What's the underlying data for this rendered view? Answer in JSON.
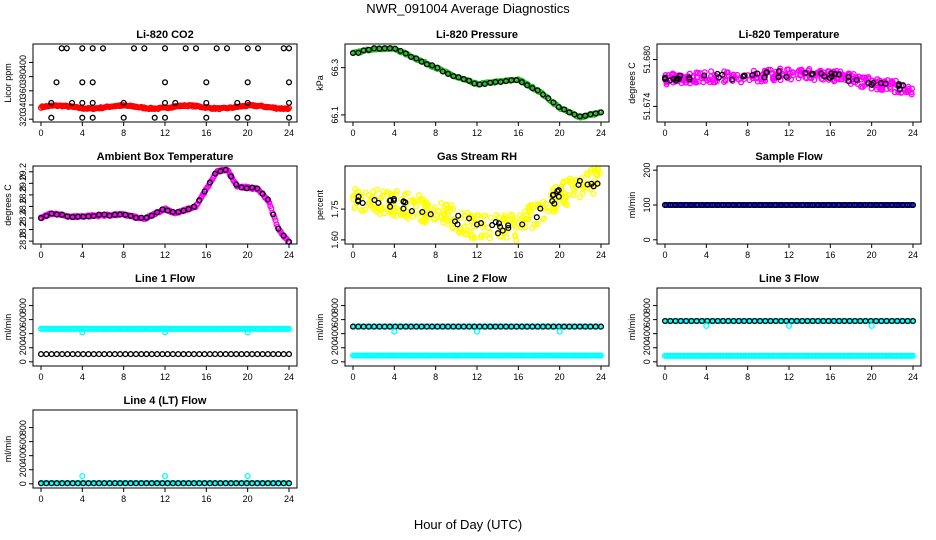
{
  "title": "NWR_091004  Average Diagnostics",
  "xlabel": "Hour of Day (UTC)",
  "colors": {
    "black": "#000000",
    "red": "#ff0000",
    "green": "#22bb22",
    "magenta": "#ff00ff",
    "yellow": "#ffff00",
    "blue": "#0000cc",
    "cyan": "#00ffff"
  },
  "chart_data": [
    {
      "type": "scatter",
      "title": "Li-820 CO2",
      "ylabel": "Licor ppm",
      "xlim": [
        0,
        24
      ],
      "ylim": [
        316,
        426
      ],
      "xticks": [
        "0",
        "4",
        "8",
        "12",
        "16",
        "20",
        "24"
      ],
      "yticks": [
        "320",
        "340",
        "360",
        "380",
        "400"
      ],
      "yticklabel_vals": [
        320,
        340,
        360,
        380,
        400
      ],
      "series": [
        {
          "color": "red",
          "pattern": "wave",
          "values": [
            [
              0,
              24,
              335,
              339,
              3,
              1
            ]
          ],
          "n": 200
        },
        {
          "color": "black",
          "pattern": "points",
          "values": [
            [
              2,
              420
            ],
            [
              2.5,
              420
            ],
            [
              4,
              420
            ],
            [
              5,
              420
            ],
            [
              6,
              420
            ],
            [
              9,
              420
            ],
            [
              10,
              420
            ],
            [
              12,
              420
            ],
            [
              14,
              420
            ],
            [
              15,
              420
            ],
            [
              17,
              420
            ],
            [
              18,
              420
            ],
            [
              20,
              420
            ],
            [
              21,
              420
            ],
            [
              23.5,
              420
            ],
            [
              24,
              420
            ],
            [
              1.5,
              372
            ],
            [
              4,
              372
            ],
            [
              5,
              372
            ],
            [
              12,
              372
            ],
            [
              16,
              372
            ],
            [
              20,
              372
            ],
            [
              24,
              372
            ],
            [
              1,
              343
            ],
            [
              3,
              343
            ],
            [
              4,
              343
            ],
            [
              5,
              343
            ],
            [
              8,
              343
            ],
            [
              12,
              343
            ],
            [
              13,
              343
            ],
            [
              16,
              343
            ],
            [
              19,
              343
            ],
            [
              20,
              343
            ],
            [
              24,
              343
            ],
            [
              1,
              322
            ],
            [
              4,
              322
            ],
            [
              5,
              322
            ],
            [
              8,
              322
            ],
            [
              11,
              322
            ],
            [
              12,
              322
            ],
            [
              16,
              322
            ],
            [
              19,
              322
            ],
            [
              20,
              322
            ],
            [
              24,
              322
            ]
          ]
        }
      ]
    },
    {
      "type": "scatter",
      "title": "Li-820 Pressure",
      "ylabel": "kPa",
      "xlim": [
        0,
        24
      ],
      "ylim": [
        66.07,
        66.4
      ],
      "xticks": [
        "0",
        "4",
        "8",
        "12",
        "16",
        "20",
        "24"
      ],
      "yticks": [
        "66.1",
        "66.3"
      ],
      "yticklabel_vals": [
        66.1,
        66.3
      ],
      "series": [
        {
          "color": "green",
          "pattern": "curve",
          "values": [
            [
              0,
              66.36
            ],
            [
              2,
              66.38
            ],
            [
              4,
              66.38
            ],
            [
              6,
              66.34
            ],
            [
              8,
              66.3
            ],
            [
              10,
              66.26
            ],
            [
              12,
              66.23
            ],
            [
              14,
              66.24
            ],
            [
              16,
              66.25
            ],
            [
              18,
              66.2
            ],
            [
              20,
              66.13
            ],
            [
              22,
              66.09
            ],
            [
              24,
              66.11
            ]
          ],
          "n": 160
        },
        {
          "color": "black",
          "pattern": "curve",
          "values": [
            [
              0,
              66.36
            ],
            [
              2,
              66.38
            ],
            [
              4,
              66.38
            ],
            [
              6,
              66.34
            ],
            [
              8,
              66.3
            ],
            [
              10,
              66.26
            ],
            [
              12,
              66.23
            ],
            [
              14,
              66.24
            ],
            [
              16,
              66.25
            ],
            [
              18,
              66.2
            ],
            [
              20,
              66.13
            ],
            [
              22,
              66.09
            ],
            [
              24,
              66.11
            ]
          ],
          "n": 48
        }
      ]
    },
    {
      "type": "scatter",
      "title": "Li-820 Temperature",
      "ylabel": "degrees C",
      "xlim": [
        0,
        24
      ],
      "ylim": [
        51.672,
        51.682
      ],
      "xticks": [
        "0",
        "4",
        "8",
        "12",
        "16",
        "20",
        "24"
      ],
      "yticks": [
        "51.674",
        "51.680"
      ],
      "yticklabel_vals": [
        51.674,
        51.68
      ],
      "series": [
        {
          "color": "magenta",
          "pattern": "noisy",
          "values": [
            [
              0,
              51.6775
            ],
            [
              4,
              51.6778
            ],
            [
              8,
              51.6778
            ],
            [
              12,
              51.6782
            ],
            [
              16,
              51.678
            ],
            [
              20,
              51.677
            ],
            [
              24,
              51.6762
            ]
          ],
          "n": 300,
          "noise": 0.0015
        },
        {
          "color": "black",
          "pattern": "noisy",
          "values": [
            [
              0,
              51.6775
            ],
            [
              4,
              51.6778
            ],
            [
              8,
              51.6778
            ],
            [
              12,
              51.6782
            ],
            [
              16,
              51.678
            ],
            [
              20,
              51.677
            ],
            [
              24,
              51.6762
            ]
          ],
          "n": 48,
          "noise": 0.0008
        }
      ]
    },
    {
      "type": "scatter",
      "title": "Ambient Box Temperature",
      "ylabel": "degrees C",
      "xlim": [
        0,
        24
      ],
      "ylim": [
        27.95,
        29.3
      ],
      "xticks": [
        "0",
        "4",
        "8",
        "12",
        "16",
        "20",
        "24"
      ],
      "yticks": [
        "28.0",
        "28.2",
        "28.4",
        "28.6",
        "28.8",
        "29.0",
        "29.2"
      ],
      "yticklabel_vals": [
        28.0,
        28.2,
        28.4,
        28.6,
        28.8,
        29.0,
        29.2
      ],
      "series": [
        {
          "color": "magenta",
          "pattern": "curve",
          "values": [
            [
              0,
              28.4
            ],
            [
              1,
              28.48
            ],
            [
              3,
              28.42
            ],
            [
              5,
              28.44
            ],
            [
              8,
              28.46
            ],
            [
              10,
              28.38
            ],
            [
              12,
              28.56
            ],
            [
              13,
              28.48
            ],
            [
              15,
              28.6
            ],
            [
              16,
              28.9
            ],
            [
              17,
              29.2
            ],
            [
              18,
              29.24
            ],
            [
              19,
              28.95
            ],
            [
              21,
              28.9
            ],
            [
              22,
              28.7
            ],
            [
              23,
              28.2
            ],
            [
              24,
              27.98
            ]
          ],
          "n": 240
        },
        {
          "color": "black",
          "pattern": "curve",
          "values": [
            [
              0,
              28.4
            ],
            [
              1,
              28.48
            ],
            [
              3,
              28.42
            ],
            [
              5,
              28.44
            ],
            [
              8,
              28.46
            ],
            [
              10,
              28.38
            ],
            [
              12,
              28.56
            ],
            [
              13,
              28.48
            ],
            [
              15,
              28.6
            ],
            [
              16,
              28.9
            ],
            [
              17,
              29.2
            ],
            [
              18,
              29.24
            ],
            [
              19,
              28.95
            ],
            [
              21,
              28.9
            ],
            [
              22,
              28.7
            ],
            [
              23,
              28.2
            ],
            [
              24,
              27.98
            ]
          ],
          "n": 48
        }
      ]
    },
    {
      "type": "scatter",
      "title": "Gas Stream RH",
      "ylabel": "percent",
      "xlim": [
        0,
        24
      ],
      "ylim": [
        1.58,
        1.96
      ],
      "xticks": [
        "0",
        "4",
        "8",
        "12",
        "16",
        "20",
        "24"
      ],
      "yticks": [
        "1.60",
        "1.75"
      ],
      "yticklabel_vals": [
        1.6,
        1.75
      ],
      "series": [
        {
          "color": "yellow",
          "pattern": "noisy",
          "values": [
            [
              0,
              1.8
            ],
            [
              4,
              1.78
            ],
            [
              8,
              1.74
            ],
            [
              12,
              1.66
            ],
            [
              16,
              1.66
            ],
            [
              20,
              1.82
            ],
            [
              24,
              1.9
            ]
          ],
          "n": 330,
          "noise": 0.13
        },
        {
          "color": "black",
          "pattern": "noisy",
          "values": [
            [
              0,
              1.8
            ],
            [
              4,
              1.78
            ],
            [
              8,
              1.74
            ],
            [
              12,
              1.66
            ],
            [
              16,
              1.66
            ],
            [
              20,
              1.82
            ],
            [
              24,
              1.9
            ]
          ],
          "n": 48,
          "noise": 0.06
        }
      ]
    },
    {
      "type": "scatter",
      "title": "Sample Flow",
      "ylabel": "ml/min",
      "xlim": [
        0,
        24
      ],
      "ylim": [
        -12,
        212
      ],
      "xticks": [
        "0",
        "4",
        "8",
        "12",
        "16",
        "20",
        "24"
      ],
      "yticks": [
        "0",
        "100",
        "200"
      ],
      "yticklabel_vals": [
        0,
        100,
        200
      ],
      "series": [
        {
          "color": "blue",
          "pattern": "flat",
          "values": [
            [
              0,
              24,
              100
            ]
          ],
          "n": 160
        },
        {
          "color": "black",
          "pattern": "flat",
          "values": [
            [
              0,
              24,
              100
            ]
          ],
          "n": 48
        }
      ]
    },
    {
      "type": "scatter",
      "title": "Line 1 Flow",
      "ylabel": "ml/min",
      "xlim": [
        0,
        24
      ],
      "ylim": [
        -60,
        1050
      ],
      "xticks": [
        "0",
        "4",
        "8",
        "12",
        "16",
        "20",
        "24"
      ],
      "yticks": [
        "0",
        "200",
        "400",
        "600",
        "800"
      ],
      "yticklabel_vals": [
        0,
        200,
        400,
        600,
        800
      ],
      "series": [
        {
          "color": "cyan",
          "pattern": "flat",
          "values": [
            [
              0,
              24,
              470
            ]
          ],
          "n": 160
        },
        {
          "color": "black",
          "pattern": "flat",
          "values": [
            [
              0,
              24,
              110
            ]
          ],
          "n": 48
        },
        {
          "color": "cyan",
          "pattern": "points",
          "values": [
            [
              4,
              420
            ],
            [
              12,
              420
            ],
            [
              20,
              420
            ]
          ]
        }
      ]
    },
    {
      "type": "scatter",
      "title": "Line 2 Flow",
      "ylabel": "ml/min",
      "xlim": [
        0,
        24
      ],
      "ylim": [
        -60,
        1050
      ],
      "xticks": [
        "0",
        "4",
        "8",
        "12",
        "16",
        "20",
        "24"
      ],
      "yticks": [
        "0",
        "200",
        "400",
        "600",
        "800"
      ],
      "yticklabel_vals": [
        0,
        200,
        400,
        600,
        800
      ],
      "series": [
        {
          "color": "cyan",
          "pattern": "flat",
          "values": [
            [
              0,
              24,
              90
            ]
          ],
          "n": 160
        },
        {
          "color": "cyan",
          "pattern": "flat",
          "values": [
            [
              0,
              24,
              500
            ]
          ],
          "n": 160
        },
        {
          "color": "black",
          "pattern": "flat",
          "values": [
            [
              0,
              24,
              500
            ]
          ],
          "n": 48
        },
        {
          "color": "cyan",
          "pattern": "points",
          "values": [
            [
              4,
              430
            ],
            [
              12,
              430
            ],
            [
              20,
              430
            ]
          ]
        }
      ]
    },
    {
      "type": "scatter",
      "title": "Line 3 Flow",
      "ylabel": "ml/min",
      "xlim": [
        0,
        24
      ],
      "ylim": [
        -60,
        1050
      ],
      "xticks": [
        "0",
        "4",
        "8",
        "12",
        "16",
        "20",
        "24"
      ],
      "yticks": [
        "0",
        "200",
        "400",
        "600",
        "800"
      ],
      "yticklabel_vals": [
        0,
        200,
        400,
        600,
        800
      ],
      "series": [
        {
          "color": "cyan",
          "pattern": "flat",
          "values": [
            [
              0,
              24,
              85
            ]
          ],
          "n": 160
        },
        {
          "color": "cyan",
          "pattern": "flat",
          "values": [
            [
              0,
              24,
              580
            ]
          ],
          "n": 160
        },
        {
          "color": "black",
          "pattern": "flat",
          "values": [
            [
              0,
              24,
              580
            ]
          ],
          "n": 48
        },
        {
          "color": "cyan",
          "pattern": "points",
          "values": [
            [
              4,
              510
            ],
            [
              12,
              510
            ],
            [
              20,
              510
            ]
          ]
        }
      ]
    },
    {
      "type": "scatter",
      "title": "Line 4 (LT) Flow",
      "ylabel": "ml/min",
      "xlim": [
        0,
        24
      ],
      "ylim": [
        -60,
        1050
      ],
      "xticks": [
        "0",
        "4",
        "8",
        "12",
        "16",
        "20",
        "24"
      ],
      "yticks": [
        "0",
        "200",
        "400",
        "600",
        "800"
      ],
      "yticklabel_vals": [
        0,
        200,
        400,
        600,
        800
      ],
      "series": [
        {
          "color": "cyan",
          "pattern": "flat",
          "values": [
            [
              0,
              24,
              8
            ]
          ],
          "n": 160
        },
        {
          "color": "black",
          "pattern": "flat",
          "values": [
            [
              0,
              24,
              8
            ]
          ],
          "n": 48
        },
        {
          "color": "cyan",
          "pattern": "points",
          "values": [
            [
              4,
              110
            ],
            [
              12,
              110
            ],
            [
              20,
              110
            ]
          ]
        }
      ]
    }
  ]
}
